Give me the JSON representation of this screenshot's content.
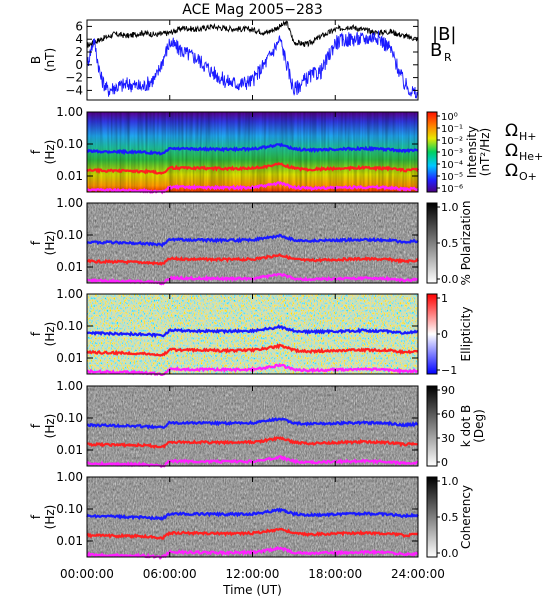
{
  "chart_data": {
    "type": "line",
    "title": "ACE Mag 2005−283",
    "xlabel": "Time (UT)",
    "x_ticks": [
      "00:00:00",
      "06:00:00",
      "12:00:00",
      "18:00:00",
      "24:00:00"
    ],
    "x_range_hours": [
      0,
      24
    ],
    "panels": [
      {
        "name": "magnetic-field",
        "kind": "line",
        "ylabel": "B",
        "yunit": "(nT)",
        "ylim": [
          -5.5,
          7
        ],
        "y_ticks": [
          "6",
          "4",
          "2",
          "0",
          "−2",
          "−4"
        ],
        "y_tick_values": [
          6,
          4,
          2,
          0,
          -2,
          -4
        ],
        "legend": [
          {
            "label": "|B|",
            "color": "#000000"
          },
          {
            "label": "B",
            "sub": "R",
            "color": "#1a1aff"
          }
        ],
        "series": [
          {
            "name": "|B|",
            "color": "#000000",
            "hours": [
              0,
              1,
              2,
              3,
              4,
              5,
              6,
              7,
              8,
              9,
              10,
              11,
              12,
              13,
              14,
              14.5,
              15,
              16,
              17,
              18,
              19,
              20,
              21,
              22,
              23,
              24
            ],
            "values": [
              3.0,
              4.0,
              4.8,
              4.5,
              5.0,
              4.7,
              5.0,
              5.8,
              5.5,
              6.0,
              5.7,
              5.6,
              5.5,
              5.0,
              6.0,
              6.6,
              3.5,
              3.2,
              4.5,
              5.5,
              6.0,
              5.5,
              5.0,
              5.2,
              4.5,
              4.0
            ]
          },
          {
            "name": "B_R",
            "color": "#1a1aff",
            "hours": [
              0,
              0.5,
              1,
              1.5,
              2,
              3,
              4,
              5,
              6,
              7,
              8,
              9,
              10,
              11,
              12,
              13,
              14,
              15,
              16,
              17,
              18,
              19,
              20,
              21,
              22,
              23,
              23.5,
              24
            ],
            "values": [
              0,
              4.0,
              -2.0,
              -4.0,
              -3.5,
              -3.0,
              -3.5,
              -2.0,
              3.5,
              2.0,
              1.0,
              -1.0,
              -2.5,
              -3.0,
              -2.5,
              0.5,
              4.0,
              -4.0,
              -2.0,
              -1.0,
              3.5,
              4.0,
              4.0,
              4.5,
              2.5,
              -3.0,
              -4.0,
              -5.0
            ]
          }
        ]
      },
      {
        "name": "intensity",
        "kind": "spectrogram",
        "ylabel": "f",
        "yunit": "(Hz)",
        "y_ticks": [
          "1.00",
          "0.10",
          "0.01"
        ],
        "colormap": "rainbow",
        "colorbar_ticks": [
          "10⁰",
          "10⁻¹",
          "10⁻²",
          "10⁻³",
          "10⁻⁴",
          "10⁻⁵",
          "10⁻⁶"
        ],
        "colorbar_label": "Intensity",
        "colorbar_unit": "(nT²/Hz)"
      },
      {
        "name": "polarization",
        "kind": "spectrogram",
        "ylabel": "f",
        "yunit": "(Hz)",
        "y_ticks": [
          "1.00",
          "0.10",
          "0.01"
        ],
        "colormap": "gray",
        "colorbar_ticks": [
          "1.0",
          "0.5",
          "0.0"
        ],
        "colorbar_label": "% Polarization"
      },
      {
        "name": "ellipticity",
        "kind": "spectrogram",
        "ylabel": "f",
        "yunit": "(Hz)",
        "y_ticks": [
          "1.00",
          "0.10",
          "0.01"
        ],
        "colormap": "bwr",
        "colorbar_ticks": [
          "1",
          "0",
          "−1"
        ],
        "colorbar_label": "Ellipticity"
      },
      {
        "name": "k-dot-b",
        "kind": "spectrogram",
        "ylabel": "f",
        "yunit": "(Hz)",
        "y_ticks": [
          "1.00",
          "0.10",
          "0.01"
        ],
        "colormap": "gray",
        "colorbar_ticks": [
          "90",
          "60",
          "30",
          "0"
        ],
        "colorbar_label": "k dot B",
        "colorbar_unit": "(Deg)"
      },
      {
        "name": "coherency",
        "kind": "spectrogram",
        "ylabel": "f",
        "yunit": "(Hz)",
        "y_ticks": [
          "1.00",
          "0.10",
          "0.01"
        ],
        "colormap": "gray",
        "colorbar_ticks": [
          "1.0",
          "0.5",
          "0.0"
        ],
        "colorbar_label": "Coherency"
      }
    ],
    "gyrofrequency_lines": [
      {
        "name": "H+",
        "label": "Ω",
        "sub": "H+",
        "color": "#1a1aff",
        "hours": [
          0,
          2,
          4,
          5.5,
          6,
          8,
          10,
          12,
          13,
          14,
          15,
          16,
          18,
          20,
          22,
          23,
          24
        ],
        "values_hz": [
          0.06,
          0.058,
          0.055,
          0.05,
          0.072,
          0.07,
          0.068,
          0.07,
          0.08,
          0.095,
          0.07,
          0.065,
          0.068,
          0.072,
          0.068,
          0.06,
          0.065
        ]
      },
      {
        "name": "He+",
        "label": "Ω",
        "sub": "He+",
        "color": "#ff2020",
        "hours": [
          0,
          2,
          4,
          5.5,
          6,
          8,
          10,
          12,
          13,
          14,
          15,
          16,
          18,
          20,
          22,
          23,
          24
        ],
        "values_hz": [
          0.015,
          0.0145,
          0.014,
          0.0125,
          0.018,
          0.0175,
          0.017,
          0.0175,
          0.02,
          0.024,
          0.0175,
          0.016,
          0.017,
          0.018,
          0.017,
          0.015,
          0.016
        ]
      },
      {
        "name": "O+",
        "label": "Ω",
        "sub": "O+",
        "color": "#ff20ff",
        "hours": [
          0,
          2,
          4,
          5.5,
          6,
          8,
          10,
          12,
          13,
          14,
          15,
          16,
          18,
          20,
          22,
          23,
          24
        ],
        "values_hz": [
          0.0038,
          0.0036,
          0.0035,
          0.0031,
          0.0045,
          0.0044,
          0.0043,
          0.0044,
          0.005,
          0.006,
          0.0044,
          0.0041,
          0.0043,
          0.0045,
          0.0043,
          0.0038,
          0.004
        ]
      }
    ]
  }
}
